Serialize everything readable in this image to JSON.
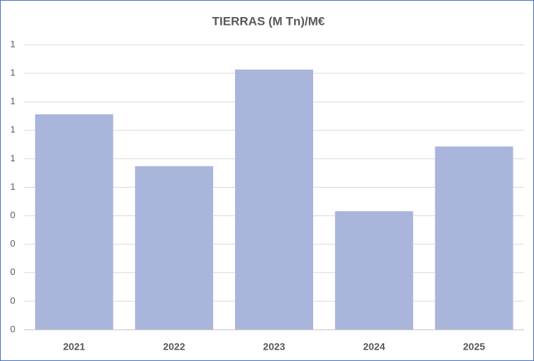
{
  "chart_data": {
    "type": "bar",
    "title": "TIERRAS (M Tn)/M€",
    "categories": [
      "2021",
      "2022",
      "2023",
      "2024",
      "2025"
    ],
    "values": [
      0.756,
      0.574,
      0.913,
      0.416,
      0.643
    ],
    "color": "#a9b5db",
    "ylim": [
      0,
      1
    ],
    "yticks": [
      0,
      {
        "value": 0.1,
        "label": "0"
      },
      {
        "value": 0.2,
        "label": "0"
      },
      {
        "value": 0.3,
        "label": "0"
      },
      {
        "value": 0.4,
        "label": "0"
      },
      {
        "value": 0.5,
        "label": "1"
      },
      {
        "value": 0.6,
        "label": "1"
      },
      {
        "value": 0.7,
        "label": "1"
      },
      {
        "value": 0.8,
        "label": "1"
      },
      {
        "value": 0.9,
        "label": "1"
      },
      1
    ],
    "grid": true
  }
}
